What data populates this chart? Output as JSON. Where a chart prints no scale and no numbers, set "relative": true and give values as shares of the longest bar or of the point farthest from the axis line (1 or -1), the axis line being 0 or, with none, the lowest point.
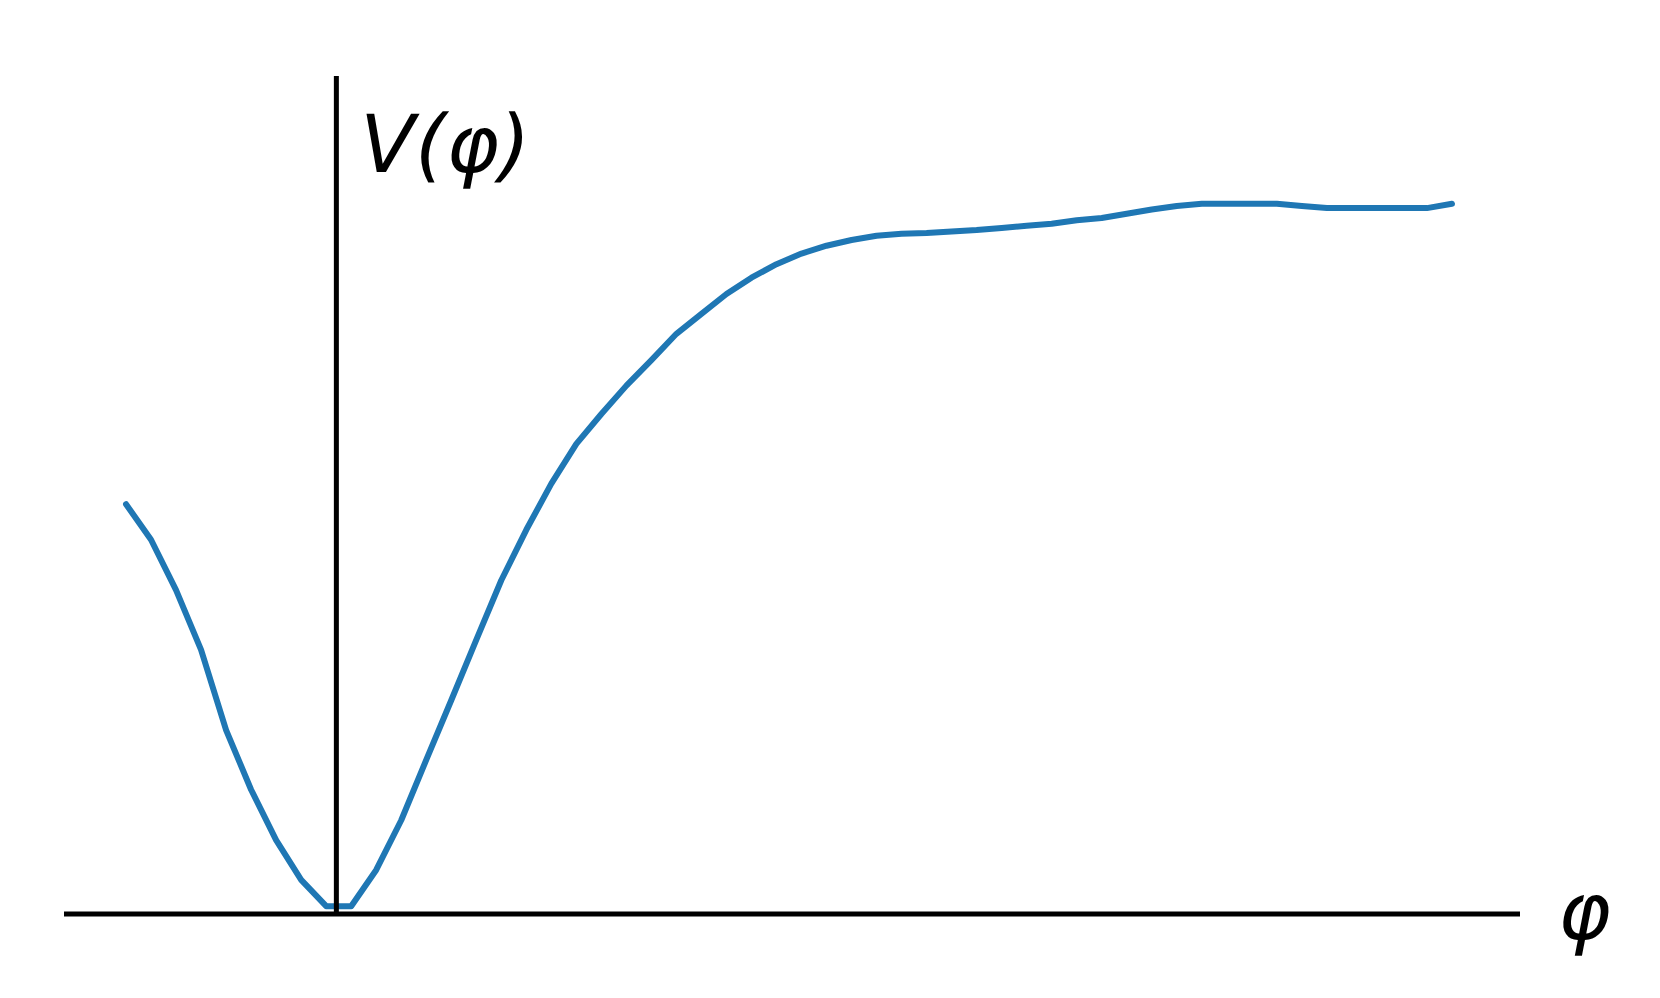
{
  "chart_data": {
    "type": "line",
    "relative": true,
    "xlabel": "φ",
    "ylabel": "V(φ)",
    "marker": "none",
    "line_style": "solid",
    "legend": false,
    "categories": [
      null,
      null,
      null,
      null,
      null,
      null,
      null,
      null,
      null,
      null,
      null,
      null,
      null,
      null,
      null,
      null,
      null,
      null,
      null,
      null,
      null,
      null,
      null,
      null,
      null,
      null,
      null,
      null,
      null,
      null,
      null,
      null,
      null,
      null,
      null,
      null,
      null,
      null,
      null,
      null,
      null,
      null,
      null,
      null,
      null,
      null,
      null,
      null,
      null,
      null,
      null,
      null,
      null,
      null,
      null,
      null,
      null,
      null
    ],
    "series": [
      {
        "color": "#1f77b4",
        "values": [
          null,
          null,
          0.577,
          0.527,
          0.456,
          0.372,
          0.259,
          0.175,
          0.104,
          0.048,
          0.011,
          0.011,
          0.062,
          0.132,
          0.217,
          0.301,
          0.386,
          0.47,
          0.541,
          0.606,
          0.662,
          0.704,
          0.744,
          0.78,
          0.817,
          0.845,
          0.873,
          0.896,
          0.915,
          0.93,
          0.941,
          0.949,
          0.955,
          0.958,
          0.959,
          0.961,
          0.963,
          0.966,
          0.969,
          0.972,
          0.977,
          0.98,
          0.986,
          0.992,
          0.997,
          1,
          1,
          1,
          1,
          0.997,
          0.994,
          0.994,
          0.994,
          0.994,
          0.994,
          1,
          null,
          null
        ]
      }
    ]
  }
}
